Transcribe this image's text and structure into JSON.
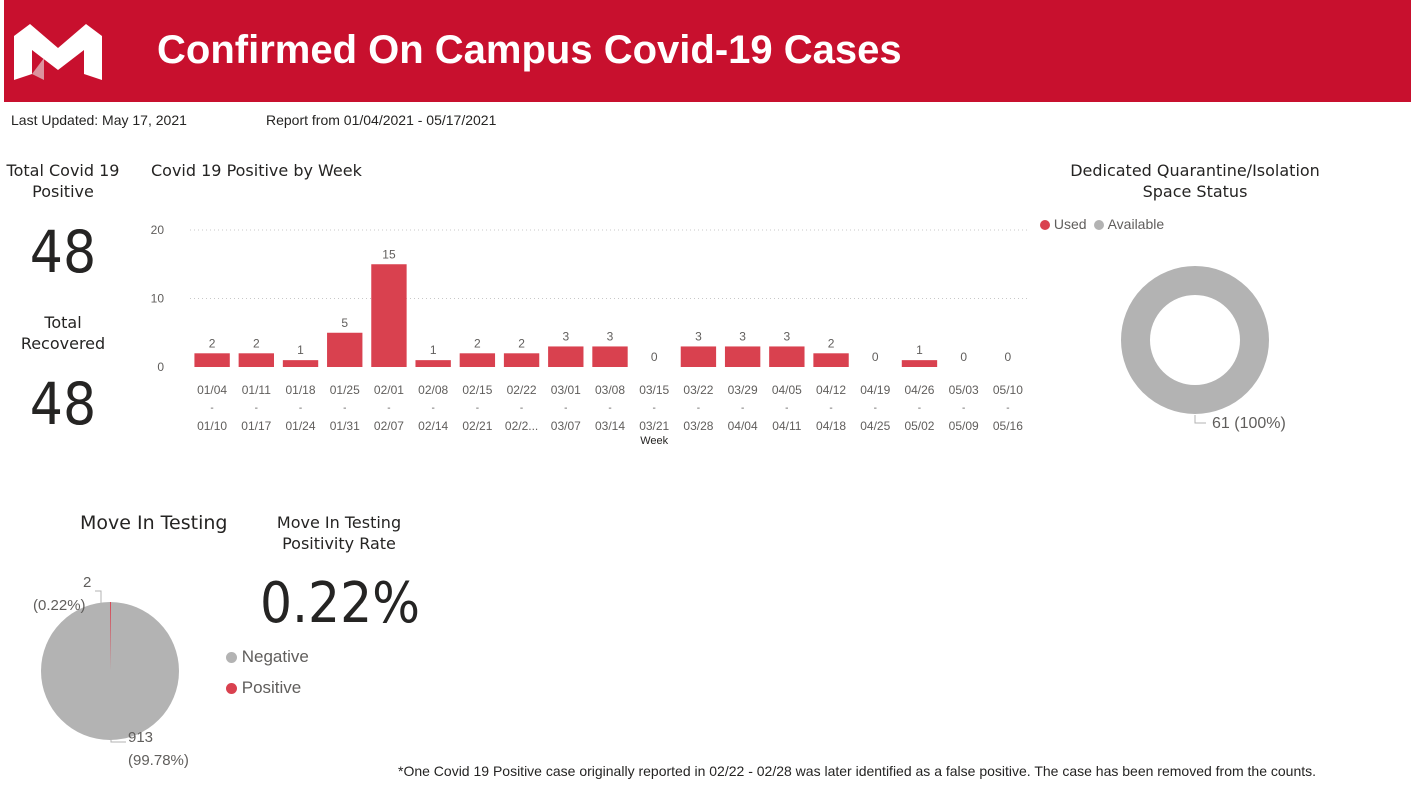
{
  "header": {
    "title": "Confirmed On Campus Covid-19 Cases",
    "logo_icon": "m-logo-icon",
    "brand_color": "#c8102e"
  },
  "subheader": {
    "last_updated": "Last Updated: May 17, 2021",
    "report_range": "Report from 01/04/2021 - 05/17/2021"
  },
  "cards": {
    "total_positive_label": "Total Covid 19 Positive",
    "total_positive_value": "48",
    "total_recovered_label": "Total Recovered",
    "total_recovered_value": "48",
    "positivity_label": "Move In Testing Positivity Rate",
    "positivity_value": "0.22%"
  },
  "chart_data": [
    {
      "type": "bar",
      "title": "Covid 19 Positive by Week",
      "xlabel": "Week",
      "ylabel": "",
      "ylim": [
        0,
        20
      ],
      "yticks": [
        0,
        10,
        20
      ],
      "grid": true,
      "color": "#d9414f",
      "categories": [
        {
          "top": "01/04",
          "sep": "-",
          "bottom": "01/10"
        },
        {
          "top": "01/11",
          "sep": "-",
          "bottom": "01/17"
        },
        {
          "top": "01/18",
          "sep": "-",
          "bottom": "01/24"
        },
        {
          "top": "01/25",
          "sep": "-",
          "bottom": "01/31"
        },
        {
          "top": "02/01",
          "sep": "-",
          "bottom": "02/07"
        },
        {
          "top": "02/08",
          "sep": "-",
          "bottom": "02/14"
        },
        {
          "top": "02/15",
          "sep": "-",
          "bottom": "02/21"
        },
        {
          "top": "02/22",
          "sep": "-",
          "bottom": "02/2..."
        },
        {
          "top": "03/01",
          "sep": "-",
          "bottom": "03/07"
        },
        {
          "top": "03/08",
          "sep": "-",
          "bottom": "03/14"
        },
        {
          "top": "03/15",
          "sep": "-",
          "bottom": "03/21"
        },
        {
          "top": "03/22",
          "sep": "-",
          "bottom": "03/28"
        },
        {
          "top": "03/29",
          "sep": "-",
          "bottom": "04/04"
        },
        {
          "top": "04/05",
          "sep": "-",
          "bottom": "04/11"
        },
        {
          "top": "04/12",
          "sep": "-",
          "bottom": "04/18"
        },
        {
          "top": "04/19",
          "sep": "-",
          "bottom": "04/25"
        },
        {
          "top": "04/26",
          "sep": "-",
          "bottom": "05/02"
        },
        {
          "top": "05/03",
          "sep": "-",
          "bottom": "05/09"
        },
        {
          "top": "05/10",
          "sep": "-",
          "bottom": "05/16"
        }
      ],
      "values": [
        2,
        2,
        1,
        5,
        15,
        1,
        2,
        2,
        3,
        3,
        0,
        3,
        3,
        3,
        2,
        0,
        1,
        0,
        0
      ]
    },
    {
      "type": "pie",
      "subtype": "donut",
      "title": "Dedicated Quarantine/Isolation Space Status",
      "legend_position": "top-left",
      "series": [
        {
          "name": "Used",
          "value": 0,
          "color": "#d9414f"
        },
        {
          "name": "Available",
          "value": 61,
          "color": "#b3b3b3"
        }
      ],
      "data_labels": [
        "61 (100%)"
      ]
    },
    {
      "type": "pie",
      "title": "Move In Testing",
      "legend_position": "right",
      "series": [
        {
          "name": "Negative",
          "value": 913,
          "color": "#b3b3b3"
        },
        {
          "name": "Positive",
          "value": 2,
          "color": "#d9414f"
        }
      ],
      "data_labels": {
        "positive_count": "2",
        "positive_pct": "(0.22%)",
        "negative_count": "913",
        "negative_pct": "(99.78%)"
      }
    }
  ],
  "footnote": "*One Covid 19 Positive case originally reported in 02/22 - 02/28 was later identified as a false positive. The case has been removed from the counts."
}
